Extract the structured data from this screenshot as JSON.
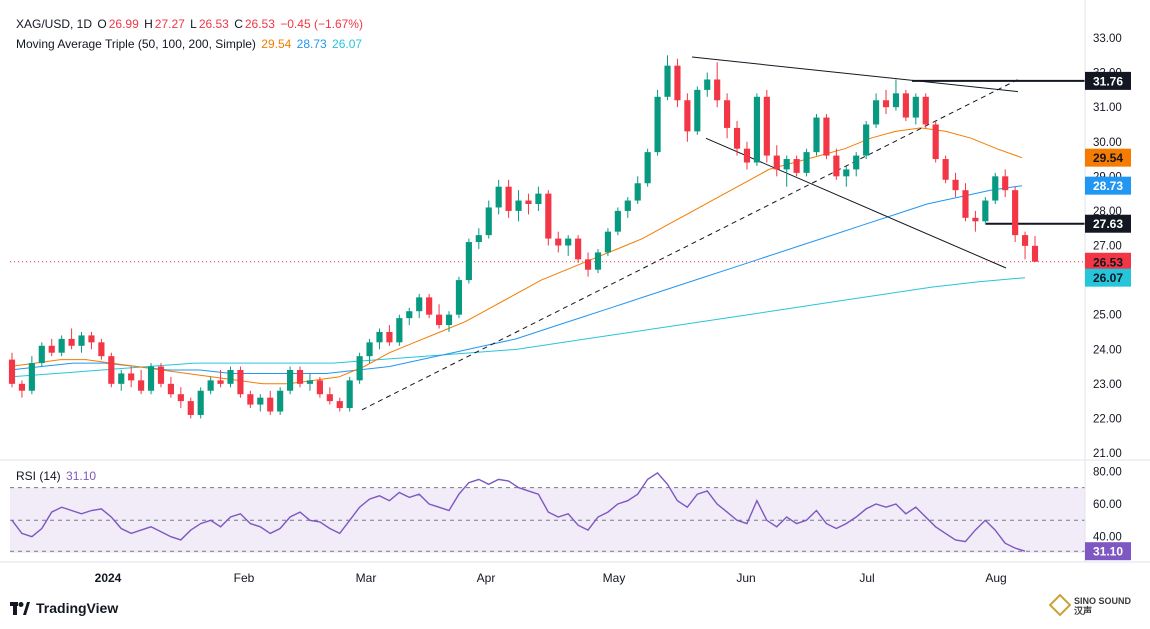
{
  "header": {
    "symbol": "XAG/USD, 1D",
    "o_label": "O",
    "o_value": "26.99",
    "h_label": "H",
    "h_value": "27.27",
    "l_label": "L",
    "l_value": "26.53",
    "c_label": "C",
    "c_value": "26.53",
    "change": "−0.45 (−1.67%)",
    "ma_title": "Moving Average Triple (50, 100, 200, Simple)",
    "ma50_value": "29.54",
    "ma100_value": "28.73",
    "ma200_value": "26.07",
    "rsi_title": "RSI (14)",
    "rsi_value": "31.10"
  },
  "branding": {
    "logo": "TradingView",
    "watermark_top": "SINO SOUND",
    "watermark_bottom": "汉声"
  },
  "colors": {
    "up": "#089981",
    "down": "#f23645",
    "ma50": "#f57c00",
    "ma100": "#2196f3",
    "ma200": "#26c6da",
    "rsi": "#7e57c2",
    "rsi_band": "#ede7f6",
    "grid_text": "#131722"
  },
  "chart_data": [
    {
      "type": "candlestick",
      "y_ticks": [
        "33.00",
        "32.00",
        "31.00",
        "30.00",
        "29.00",
        "28.00",
        "27.00",
        "26.00",
        "25.00",
        "24.00",
        "23.00",
        "22.00",
        "21.00"
      ],
      "ylim": [
        21,
        33
      ],
      "x_ticks": [
        "2024",
        "Feb",
        "Mar",
        "Apr",
        "May",
        "Jun",
        "Jul",
        "Aug"
      ],
      "price_badges": [
        {
          "label": "31.76",
          "value": 31.76,
          "style": "dark"
        },
        {
          "label": "29.54",
          "value": 29.54,
          "style": "ma50"
        },
        {
          "label": "28.73",
          "value": 28.73,
          "style": "ma100"
        },
        {
          "label": "27.63",
          "value": 27.63,
          "style": "dark"
        },
        {
          "label": "26.53",
          "value": 26.53,
          "style": "down"
        },
        {
          "label": "26.07",
          "value": 26.07,
          "style": "ma200"
        }
      ],
      "horizontal_levels": [
        31.76,
        27.63
      ],
      "last_price_line": 26.53,
      "candles": [
        [
          23.7,
          23.9,
          22.9,
          23.0
        ],
        [
          23.0,
          23.1,
          22.6,
          22.8
        ],
        [
          22.8,
          23.8,
          22.7,
          23.6
        ],
        [
          23.6,
          24.2,
          23.5,
          24.1
        ],
        [
          24.1,
          24.3,
          23.8,
          23.9
        ],
        [
          23.9,
          24.4,
          23.8,
          24.3
        ],
        [
          24.3,
          24.6,
          24.0,
          24.1
        ],
        [
          24.1,
          24.5,
          23.9,
          24.4
        ],
        [
          24.4,
          24.5,
          24.0,
          24.2
        ],
        [
          24.2,
          24.3,
          23.7,
          23.8
        ],
        [
          23.8,
          23.9,
          22.9,
          23.0
        ],
        [
          23.0,
          23.4,
          22.8,
          23.3
        ],
        [
          23.3,
          23.5,
          22.9,
          23.1
        ],
        [
          23.1,
          23.4,
          22.7,
          22.8
        ],
        [
          22.8,
          23.6,
          22.7,
          23.5
        ],
        [
          23.5,
          23.6,
          22.9,
          23.0
        ],
        [
          23.0,
          23.2,
          22.6,
          22.7
        ],
        [
          22.7,
          22.9,
          22.3,
          22.5
        ],
        [
          22.5,
          22.6,
          22.0,
          22.1
        ],
        [
          22.1,
          22.9,
          22.0,
          22.8
        ],
        [
          22.8,
          23.2,
          22.7,
          23.1
        ],
        [
          23.1,
          23.4,
          22.9,
          23.0
        ],
        [
          23.0,
          23.5,
          22.9,
          23.4
        ],
        [
          23.4,
          23.5,
          22.6,
          22.7
        ],
        [
          22.7,
          22.8,
          22.3,
          22.4
        ],
        [
          22.4,
          22.7,
          22.2,
          22.6
        ],
        [
          22.6,
          22.8,
          22.1,
          22.2
        ],
        [
          22.2,
          22.9,
          22.1,
          22.8
        ],
        [
          22.8,
          23.5,
          22.7,
          23.4
        ],
        [
          23.4,
          23.5,
          22.9,
          23.0
        ],
        [
          23.0,
          23.3,
          22.8,
          23.1
        ],
        [
          23.1,
          23.2,
          22.6,
          22.7
        ],
        [
          22.7,
          22.9,
          22.4,
          22.5
        ],
        [
          22.5,
          22.6,
          22.2,
          22.3
        ],
        [
          22.3,
          23.2,
          22.2,
          23.1
        ],
        [
          23.1,
          23.9,
          23.0,
          23.8
        ],
        [
          23.8,
          24.3,
          23.6,
          24.2
        ],
        [
          24.2,
          24.6,
          24.0,
          24.5
        ],
        [
          24.5,
          24.7,
          24.1,
          24.2
        ],
        [
          24.2,
          25.0,
          24.1,
          24.9
        ],
        [
          24.9,
          25.2,
          24.7,
          25.1
        ],
        [
          25.1,
          25.6,
          24.9,
          25.5
        ],
        [
          25.5,
          25.6,
          24.9,
          25.0
        ],
        [
          25.0,
          25.3,
          24.6,
          24.7
        ],
        [
          24.7,
          25.1,
          24.5,
          25.0
        ],
        [
          25.0,
          26.1,
          24.9,
          26.0
        ],
        [
          26.0,
          27.2,
          25.9,
          27.1
        ],
        [
          27.1,
          27.5,
          26.9,
          27.3
        ],
        [
          27.3,
          28.3,
          27.2,
          28.1
        ],
        [
          28.1,
          28.9,
          27.9,
          28.7
        ],
        [
          28.7,
          28.9,
          27.8,
          28.0
        ],
        [
          28.0,
          28.6,
          27.7,
          28.3
        ],
        [
          28.3,
          28.5,
          27.9,
          28.2
        ],
        [
          28.2,
          28.7,
          28.0,
          28.5
        ],
        [
          28.5,
          28.6,
          27.0,
          27.2
        ],
        [
          27.2,
          27.4,
          26.8,
          27.0
        ],
        [
          27.0,
          27.3,
          26.7,
          27.2
        ],
        [
          27.2,
          27.3,
          26.5,
          26.6
        ],
        [
          26.6,
          26.8,
          26.1,
          26.3
        ],
        [
          26.3,
          26.9,
          26.2,
          26.8
        ],
        [
          26.8,
          27.5,
          26.7,
          27.4
        ],
        [
          27.4,
          28.1,
          27.3,
          28.0
        ],
        [
          28.0,
          28.4,
          27.8,
          28.3
        ],
        [
          28.3,
          29.0,
          28.2,
          28.8
        ],
        [
          28.8,
          29.8,
          28.7,
          29.7
        ],
        [
          29.7,
          31.5,
          29.6,
          31.3
        ],
        [
          31.3,
          32.5,
          31.2,
          32.2
        ],
        [
          32.2,
          32.4,
          31.0,
          31.2
        ],
        [
          31.2,
          31.4,
          30.0,
          30.3
        ],
        [
          30.3,
          31.6,
          30.2,
          31.5
        ],
        [
          31.5,
          32.0,
          31.3,
          31.8
        ],
        [
          31.8,
          32.3,
          31.0,
          31.2
        ],
        [
          31.2,
          31.4,
          30.1,
          30.4
        ],
        [
          30.4,
          30.6,
          29.6,
          29.8
        ],
        [
          29.8,
          30.0,
          29.2,
          29.4
        ],
        [
          29.4,
          31.4,
          29.3,
          31.3
        ],
        [
          31.3,
          31.5,
          29.4,
          29.6
        ],
        [
          29.6,
          29.9,
          29.0,
          29.2
        ],
        [
          29.2,
          29.6,
          28.7,
          29.5
        ],
        [
          29.5,
          29.6,
          29.0,
          29.1
        ],
        [
          29.1,
          29.8,
          29.0,
          29.7
        ],
        [
          29.7,
          30.8,
          29.6,
          30.7
        ],
        [
          30.7,
          30.8,
          29.5,
          29.6
        ],
        [
          29.6,
          29.8,
          28.9,
          29.0
        ],
        [
          29.0,
          29.3,
          28.7,
          29.2
        ],
        [
          29.2,
          29.7,
          29.0,
          29.6
        ],
        [
          29.6,
          30.6,
          29.5,
          30.5
        ],
        [
          30.5,
          31.4,
          30.4,
          31.2
        ],
        [
          31.2,
          31.5,
          30.8,
          31.0
        ],
        [
          31.0,
          31.8,
          30.9,
          31.4
        ],
        [
          31.4,
          31.5,
          30.6,
          30.7
        ],
        [
          30.7,
          31.4,
          30.5,
          31.3
        ],
        [
          31.3,
          31.4,
          30.4,
          30.5
        ],
        [
          30.5,
          30.6,
          29.4,
          29.5
        ],
        [
          29.5,
          29.6,
          28.8,
          28.9
        ],
        [
          28.9,
          29.1,
          28.4,
          28.6
        ],
        [
          28.6,
          28.8,
          27.7,
          27.8
        ],
        [
          27.8,
          28.0,
          27.4,
          27.7
        ],
        [
          27.7,
          28.4,
          27.6,
          28.3
        ],
        [
          28.3,
          29.1,
          28.2,
          29.0
        ],
        [
          29.0,
          29.2,
          28.4,
          28.6
        ],
        [
          28.6,
          28.7,
          27.1,
          27.3
        ],
        [
          27.3,
          27.4,
          26.6,
          26.99
        ],
        [
          26.99,
          27.27,
          26.53,
          26.53
        ]
      ],
      "ma50": [
        23.5,
        23.6,
        23.7,
        23.7,
        23.6,
        23.5,
        23.4,
        23.3,
        23.2,
        23.1,
        23.0,
        23.0,
        23.1,
        23.2,
        23.5,
        23.9,
        24.2,
        24.5,
        24.8,
        25.2,
        25.6,
        26.0,
        26.3,
        26.6,
        26.9,
        27.2,
        27.6,
        28.0,
        28.4,
        28.8,
        29.2,
        29.4,
        29.6,
        29.8,
        30.1,
        30.3,
        30.4,
        30.3,
        30.1,
        29.8,
        29.54
      ],
      "ma100": [
        23.4,
        23.5,
        23.6,
        23.6,
        23.5,
        23.4,
        23.4,
        23.3,
        23.3,
        23.3,
        23.3,
        23.4,
        23.5,
        23.7,
        23.9,
        24.1,
        24.3,
        24.6,
        24.9,
        25.2,
        25.5,
        25.8,
        26.1,
        26.4,
        26.7,
        27.0,
        27.3,
        27.6,
        27.9,
        28.2,
        28.4,
        28.6,
        28.73
      ],
      "ma200": [
        23.2,
        23.3,
        23.4,
        23.5,
        23.6,
        23.6,
        23.6,
        23.6,
        23.7,
        23.8,
        23.9,
        24.0,
        24.2,
        24.4,
        24.6,
        24.8,
        25.0,
        25.2,
        25.4,
        25.6,
        25.8,
        25.95,
        26.07
      ],
      "trendlines": [
        {
          "name": "upper-wedge-line",
          "from": [
            22.3,
            "Mar"
          ],
          "to": [
            32.5,
            "May"
          ]
        },
        {
          "name": "support-line",
          "from": [
            22.3,
            "Mar"
          ],
          "to": [
            31.8,
            "Aug"
          ]
        }
      ]
    },
    {
      "type": "line",
      "title": "RSI (14)",
      "y_ticks": [
        "80.00",
        "60.00",
        "40.00"
      ],
      "ylim": [
        30,
        82
      ],
      "band": [
        30,
        70
      ],
      "midline": 50,
      "values": [
        50,
        42,
        40,
        45,
        55,
        58,
        56,
        54,
        56,
        57,
        52,
        45,
        42,
        44,
        46,
        43,
        40,
        38,
        44,
        48,
        50,
        46,
        52,
        54,
        48,
        46,
        42,
        45,
        52,
        55,
        50,
        49,
        45,
        42,
        50,
        58,
        63,
        65,
        62,
        67,
        64,
        66,
        60,
        58,
        56,
        66,
        73,
        75,
        72,
        75,
        74,
        70,
        68,
        66,
        55,
        52,
        54,
        47,
        44,
        52,
        55,
        60,
        62,
        66,
        75,
        79,
        72,
        62,
        58,
        66,
        68,
        60,
        55,
        50,
        48,
        62,
        50,
        46,
        52,
        48,
        50,
        56,
        48,
        45,
        48,
        52,
        57,
        60,
        58,
        60,
        54,
        58,
        52,
        46,
        42,
        38,
        37,
        44,
        50,
        44,
        36,
        33,
        31.1
      ]
    }
  ]
}
